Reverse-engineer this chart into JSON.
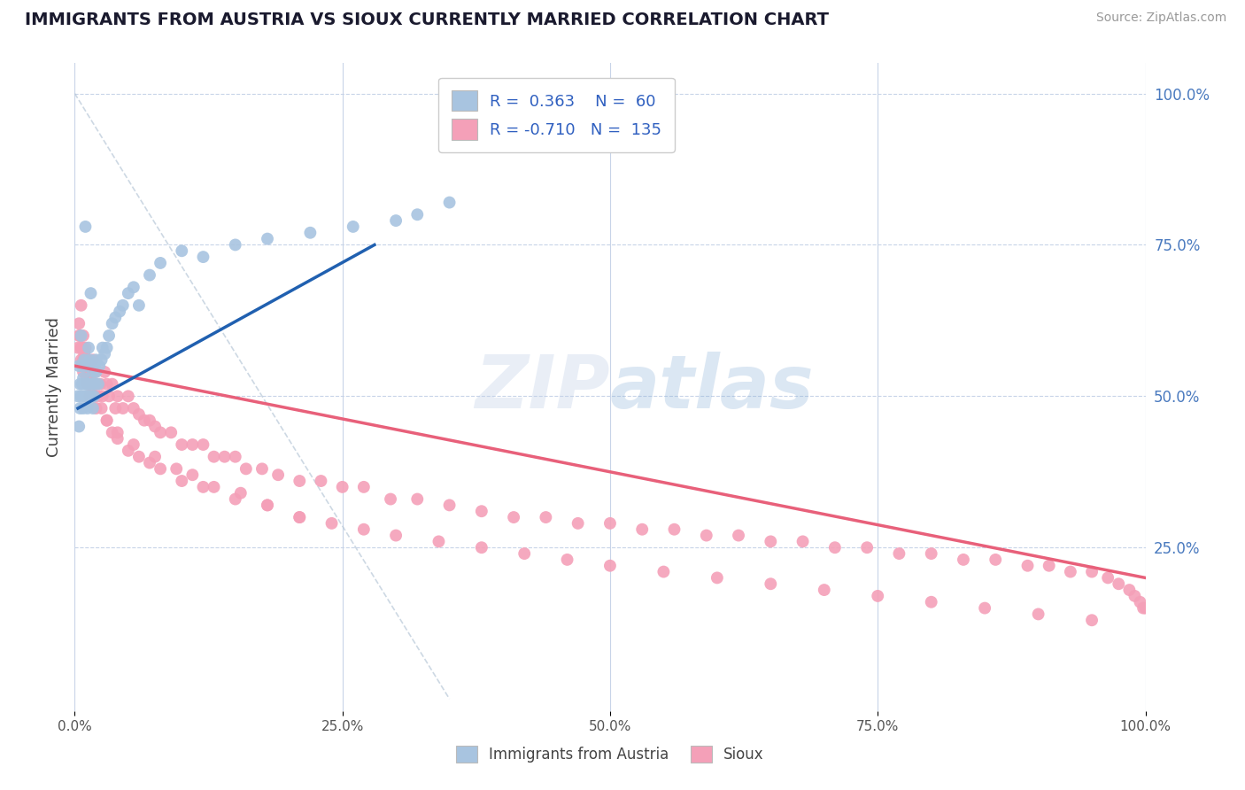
{
  "title": "IMMIGRANTS FROM AUSTRIA VS SIOUX CURRENTLY MARRIED CORRELATION CHART",
  "source_text": "Source: ZipAtlas.com",
  "ylabel": "Currently Married",
  "xlim": [
    0.0,
    1.0
  ],
  "ylim": [
    -0.02,
    1.05
  ],
  "xtick_labels": [
    "0.0%",
    "25.0%",
    "50.0%",
    "75.0%",
    "100.0%"
  ],
  "xtick_vals": [
    0.0,
    0.25,
    0.5,
    0.75,
    1.0
  ],
  "ytick_labels_right": [
    "100.0%",
    "75.0%",
    "50.0%",
    "25.0%"
  ],
  "ytick_vals_right": [
    1.0,
    0.75,
    0.5,
    0.25
  ],
  "grid_yticks": [
    0.25,
    0.5,
    0.75,
    1.0
  ],
  "austria_color": "#a8c4e0",
  "sioux_color": "#f4a0b8",
  "austria_line_color": "#2060b0",
  "sioux_line_color": "#e8607a",
  "austria_R": 0.363,
  "austria_N": 60,
  "sioux_R": -0.71,
  "sioux_N": 135,
  "legend_color": "#3060c0",
  "legend_label1": "Immigrants from Austria",
  "legend_label2": "Sioux",
  "watermark": "ZIPatlas",
  "background_color": "#ffffff",
  "grid_color": "#c8d4e8",
  "title_color": "#1a1a2e",
  "austria_x": [
    0.003,
    0.004,
    0.004,
    0.005,
    0.005,
    0.006,
    0.006,
    0.007,
    0.007,
    0.008,
    0.008,
    0.009,
    0.009,
    0.01,
    0.01,
    0.011,
    0.011,
    0.012,
    0.012,
    0.013,
    0.013,
    0.014,
    0.014,
    0.015,
    0.015,
    0.016,
    0.016,
    0.017,
    0.017,
    0.018,
    0.018,
    0.019,
    0.019,
    0.02,
    0.02,
    0.022,
    0.023,
    0.025,
    0.026,
    0.028,
    0.03,
    0.032,
    0.035,
    0.038,
    0.042,
    0.045,
    0.05,
    0.055,
    0.06,
    0.07,
    0.08,
    0.1,
    0.12,
    0.15,
    0.18,
    0.22,
    0.26,
    0.3,
    0.32,
    0.35
  ],
  "austria_y": [
    0.5,
    0.55,
    0.45,
    0.52,
    0.48,
    0.5,
    0.6,
    0.52,
    0.55,
    0.48,
    0.53,
    0.5,
    0.56,
    0.52,
    0.78,
    0.5,
    0.55,
    0.48,
    0.52,
    0.5,
    0.58,
    0.52,
    0.56,
    0.5,
    0.67,
    0.52,
    0.55,
    0.48,
    0.54,
    0.52,
    0.5,
    0.55,
    0.52,
    0.54,
    0.56,
    0.52,
    0.55,
    0.56,
    0.58,
    0.57,
    0.58,
    0.6,
    0.62,
    0.63,
    0.64,
    0.65,
    0.67,
    0.68,
    0.65,
    0.7,
    0.72,
    0.74,
    0.73,
    0.75,
    0.76,
    0.77,
    0.78,
    0.79,
    0.8,
    0.82
  ],
  "sioux_x": [
    0.003,
    0.004,
    0.005,
    0.006,
    0.007,
    0.008,
    0.009,
    0.01,
    0.011,
    0.012,
    0.013,
    0.014,
    0.015,
    0.016,
    0.017,
    0.018,
    0.019,
    0.02,
    0.022,
    0.024,
    0.026,
    0.028,
    0.03,
    0.032,
    0.035,
    0.038,
    0.04,
    0.045,
    0.05,
    0.055,
    0.06,
    0.065,
    0.07,
    0.075,
    0.08,
    0.09,
    0.1,
    0.11,
    0.12,
    0.13,
    0.14,
    0.15,
    0.16,
    0.175,
    0.19,
    0.21,
    0.23,
    0.25,
    0.27,
    0.295,
    0.32,
    0.35,
    0.38,
    0.41,
    0.44,
    0.47,
    0.5,
    0.53,
    0.56,
    0.59,
    0.62,
    0.65,
    0.68,
    0.71,
    0.74,
    0.77,
    0.8,
    0.83,
    0.86,
    0.89,
    0.91,
    0.93,
    0.95,
    0.965,
    0.975,
    0.985,
    0.99,
    0.995,
    0.998,
    1.0,
    0.006,
    0.008,
    0.01,
    0.012,
    0.014,
    0.016,
    0.018,
    0.02,
    0.025,
    0.03,
    0.035,
    0.04,
    0.05,
    0.06,
    0.07,
    0.08,
    0.1,
    0.12,
    0.15,
    0.18,
    0.21,
    0.24,
    0.27,
    0.3,
    0.34,
    0.38,
    0.42,
    0.46,
    0.5,
    0.55,
    0.6,
    0.65,
    0.7,
    0.75,
    0.8,
    0.85,
    0.9,
    0.95,
    0.004,
    0.006,
    0.008,
    0.01,
    0.012,
    0.015,
    0.02,
    0.03,
    0.04,
    0.055,
    0.075,
    0.095,
    0.11,
    0.13,
    0.155,
    0.18,
    0.21
  ],
  "sioux_y": [
    0.58,
    0.62,
    0.6,
    0.56,
    0.58,
    0.54,
    0.57,
    0.55,
    0.53,
    0.56,
    0.52,
    0.5,
    0.54,
    0.52,
    0.56,
    0.5,
    0.54,
    0.52,
    0.5,
    0.52,
    0.5,
    0.54,
    0.52,
    0.5,
    0.52,
    0.48,
    0.5,
    0.48,
    0.5,
    0.48,
    0.47,
    0.46,
    0.46,
    0.45,
    0.44,
    0.44,
    0.42,
    0.42,
    0.42,
    0.4,
    0.4,
    0.4,
    0.38,
    0.38,
    0.37,
    0.36,
    0.36,
    0.35,
    0.35,
    0.33,
    0.33,
    0.32,
    0.31,
    0.3,
    0.3,
    0.29,
    0.29,
    0.28,
    0.28,
    0.27,
    0.27,
    0.26,
    0.26,
    0.25,
    0.25,
    0.24,
    0.24,
    0.23,
    0.23,
    0.22,
    0.22,
    0.21,
    0.21,
    0.2,
    0.19,
    0.18,
    0.17,
    0.16,
    0.15,
    0.15,
    0.65,
    0.6,
    0.58,
    0.56,
    0.52,
    0.54,
    0.5,
    0.52,
    0.48,
    0.46,
    0.44,
    0.43,
    0.41,
    0.4,
    0.39,
    0.38,
    0.36,
    0.35,
    0.33,
    0.32,
    0.3,
    0.29,
    0.28,
    0.27,
    0.26,
    0.25,
    0.24,
    0.23,
    0.22,
    0.21,
    0.2,
    0.19,
    0.18,
    0.17,
    0.16,
    0.15,
    0.14,
    0.13,
    0.6,
    0.58,
    0.56,
    0.55,
    0.52,
    0.5,
    0.48,
    0.46,
    0.44,
    0.42,
    0.4,
    0.38,
    0.37,
    0.35,
    0.34,
    0.32,
    0.3
  ],
  "sioux_trend_x": [
    0.0,
    1.0
  ],
  "sioux_trend_y_start": 0.55,
  "sioux_trend_y_end": 0.2,
  "austria_trend_x_start": 0.003,
  "austria_trend_x_end": 0.28,
  "austria_trend_y_start": 0.48,
  "austria_trend_y_end": 0.75
}
